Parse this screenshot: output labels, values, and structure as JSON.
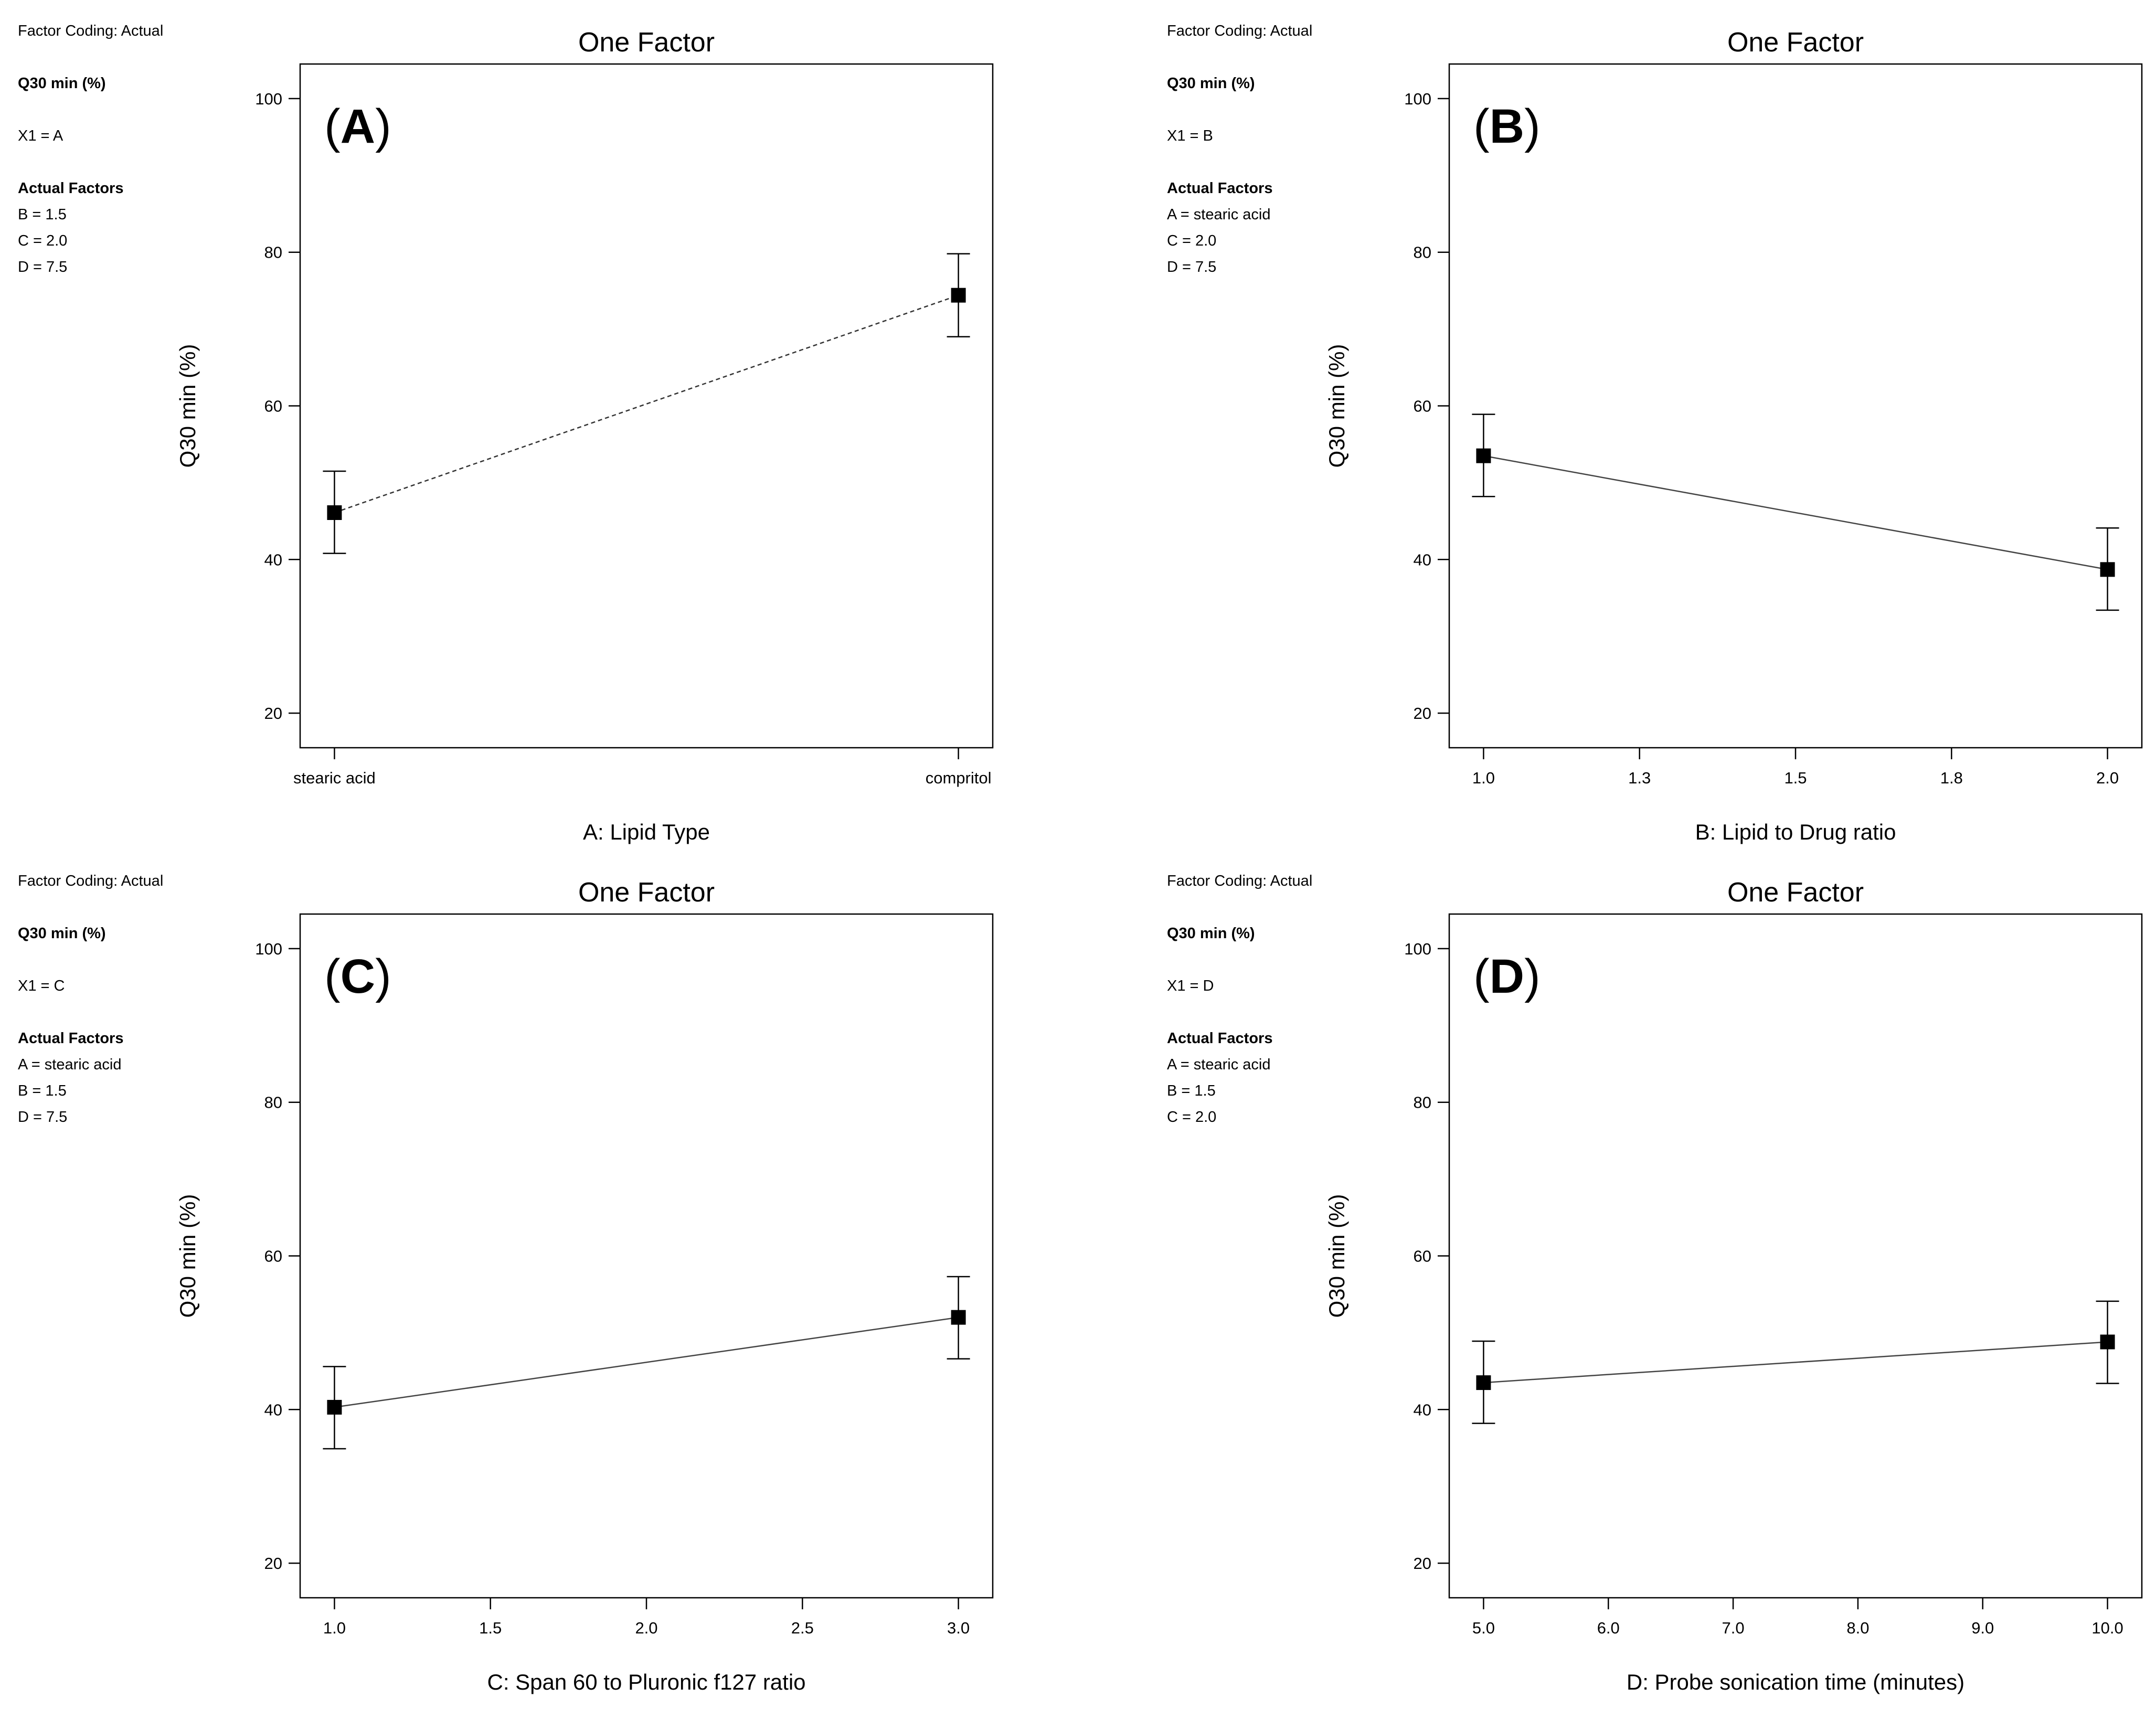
{
  "chart_data": [
    {
      "id": "A",
      "type": "line",
      "title": "One Factor",
      "panel_label": "A",
      "xlabel": "A: Lipid Type",
      "ylabel": "Q30 min (%)",
      "xscale": "categorical",
      "categories": [
        "stearic acid",
        "compritol"
      ],
      "xticks": [
        0,
        1
      ],
      "xtick_labels": [
        "stearic acid",
        "compritol"
      ],
      "xlim": [
        -0.055,
        1.055
      ],
      "ylim": [
        15.5,
        104.5
      ],
      "yticks": [
        20,
        40,
        60,
        80,
        100
      ],
      "line_style": "dashed",
      "points": [
        {
          "x": 0,
          "y": 46.1,
          "err_low": 40.8,
          "err_high": 51.5
        },
        {
          "x": 1,
          "y": 74.4,
          "err_low": 69.0,
          "err_high": 79.8
        }
      ],
      "info": {
        "coding": "Factor Coding: Actual",
        "response": "Q30 min (%)",
        "x1": "X1 = A",
        "actual_header": "Actual Factors",
        "actual": [
          "B = 1.5",
          "C = 2.0",
          "D = 7.5"
        ]
      }
    },
    {
      "id": "B",
      "type": "line",
      "title": "One Factor",
      "panel_label": "B",
      "xlabel": "B: Lipid to Drug ratio",
      "ylabel": "Q30 min (%)",
      "xscale": "linear",
      "xticks": [
        1.0,
        1.25,
        1.5,
        1.75,
        2.0
      ],
      "xtick_labels": [
        "1.0",
        "1.3",
        "1.5",
        "1.8",
        "2.0"
      ],
      "xlim": [
        0.945,
        2.055
      ],
      "ylim": [
        15.5,
        104.5
      ],
      "yticks": [
        20,
        40,
        60,
        80,
        100
      ],
      "line_style": "solid",
      "points": [
        {
          "x": 1.0,
          "y": 53.5,
          "err_low": 48.2,
          "err_high": 58.9
        },
        {
          "x": 2.0,
          "y": 38.7,
          "err_low": 33.4,
          "err_high": 44.1
        }
      ],
      "info": {
        "coding": "Factor Coding: Actual",
        "response": "Q30 min (%)",
        "x1": "X1 = B",
        "actual_header": "Actual Factors",
        "actual": [
          "A = stearic acid",
          "C = 2.0",
          "D = 7.5"
        ]
      }
    },
    {
      "id": "C",
      "type": "line",
      "title": "One Factor",
      "panel_label": "C",
      "xlabel": "C: Span 60 to Pluronic f127 ratio",
      "ylabel": "Q30 min (%)",
      "xscale": "linear",
      "xticks": [
        1.0,
        1.5,
        2.0,
        2.5,
        3.0
      ],
      "xtick_labels": [
        "1.0",
        "1.5",
        "2.0",
        "2.5",
        "3.0"
      ],
      "xlim": [
        0.89,
        3.11
      ],
      "ylim": [
        15.5,
        104.5
      ],
      "yticks": [
        20,
        40,
        60,
        80,
        100
      ],
      "line_style": "solid",
      "points": [
        {
          "x": 1.0,
          "y": 40.3,
          "err_low": 34.9,
          "err_high": 45.6
        },
        {
          "x": 3.0,
          "y": 52.0,
          "err_low": 46.6,
          "err_high": 57.3
        }
      ],
      "info": {
        "coding": "Factor Coding: Actual",
        "response": "Q30 min (%)",
        "x1": "X1 = C",
        "actual_header": "Actual Factors",
        "actual": [
          "A = stearic acid",
          "B = 1.5",
          "D = 7.5"
        ]
      }
    },
    {
      "id": "D",
      "type": "line",
      "title": "One Factor",
      "panel_label": "D",
      "xlabel": "D: Probe sonication time (minutes)",
      "ylabel": "Q30 min (%)",
      "xscale": "linear",
      "xticks": [
        5.0,
        6.0,
        7.0,
        8.0,
        9.0,
        10.0
      ],
      "xtick_labels": [
        "5.0",
        "6.0",
        "7.0",
        "8.0",
        "9.0",
        "10.0"
      ],
      "xlim": [
        4.725,
        10.275
      ],
      "ylim": [
        15.5,
        104.5
      ],
      "yticks": [
        20,
        40,
        60,
        80,
        100
      ],
      "line_style": "solid",
      "points": [
        {
          "x": 5.0,
          "y": 43.5,
          "err_low": 38.2,
          "err_high": 48.9
        },
        {
          "x": 10.0,
          "y": 48.8,
          "err_low": 43.4,
          "err_high": 54.1
        }
      ],
      "info": {
        "coding": "Factor Coding: Actual",
        "response": "Q30 min (%)",
        "x1": "X1 = D",
        "actual_header": "Actual Factors",
        "actual": [
          "A = stearic acid",
          "B = 1.5",
          "C = 2.0"
        ]
      }
    }
  ]
}
